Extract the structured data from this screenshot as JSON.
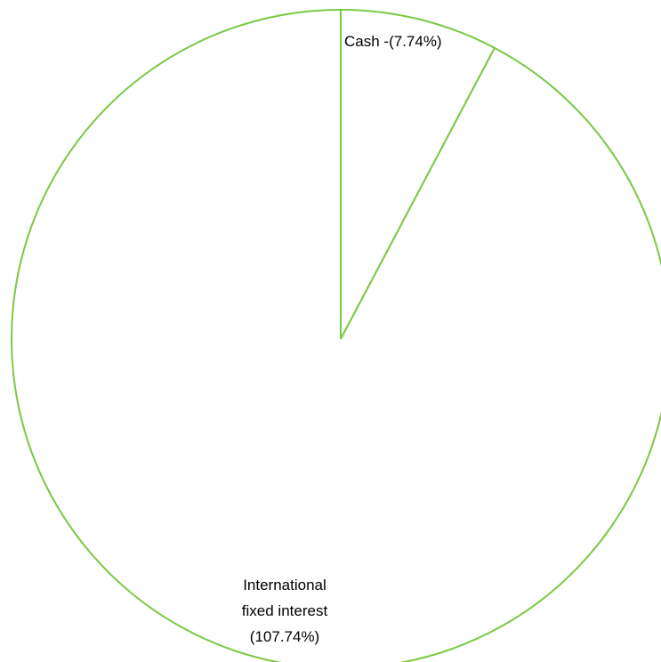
{
  "chart_data": {
    "type": "pie",
    "title": "",
    "categories": [
      "Cash",
      "International fixed interest"
    ],
    "values": [
      -7.74,
      107.74
    ],
    "labels": [
      [
        "Cash -(7.74%)"
      ],
      [
        "International",
        "fixed interest",
        "(107.74%)"
      ]
    ],
    "slice_fill": "#ffffff",
    "slice_stroke": "#7ac943",
    "legend": "none"
  }
}
